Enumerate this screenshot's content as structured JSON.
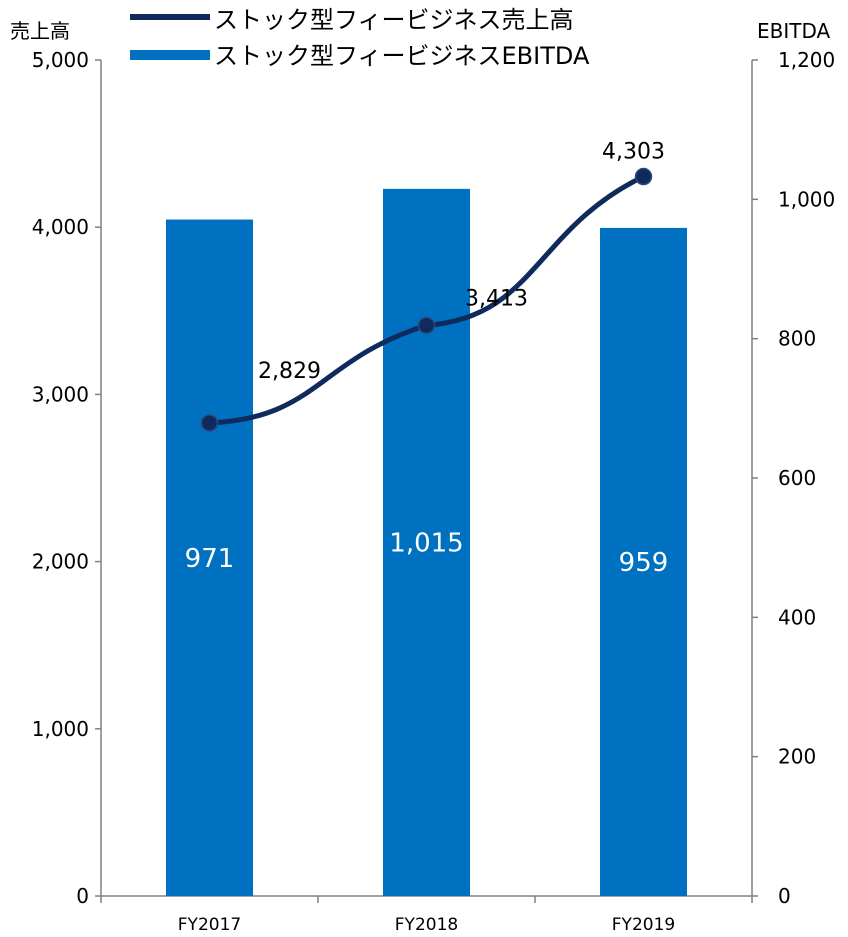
{
  "chart_data": {
    "type": "bar+line",
    "categories": [
      "FY2017",
      "FY2018",
      "FY2019"
    ],
    "left_axis": {
      "title": "売上高",
      "ylim": [
        0,
        5000
      ],
      "ticks": [
        0,
        1000,
        2000,
        3000,
        4000,
        5000
      ],
      "tick_labels": [
        "0",
        "1,000",
        "2,000",
        "3,000",
        "4,000",
        "5,000"
      ]
    },
    "right_axis": {
      "title": "EBITDA",
      "ylim": [
        0,
        1200
      ],
      "ticks": [
        0,
        200,
        400,
        600,
        800,
        1000,
        1200
      ],
      "tick_labels": [
        "0",
        "200",
        "400",
        "600",
        "800",
        "1,000",
        "1,200"
      ]
    },
    "series": [
      {
        "name": "ストック型フィービジネス売上高",
        "type": "line",
        "axis": "left",
        "values": [
          2829,
          3413,
          4303
        ],
        "labels": [
          "2,829",
          "3,413",
          "4,303"
        ],
        "color": "#0f2a5c"
      },
      {
        "name": "ストック型フィービジネスEBITDA",
        "type": "bar",
        "axis": "right",
        "values": [
          971,
          1015,
          959
        ],
        "labels": [
          "971",
          "1,015",
          "959"
        ],
        "color": "#0070c0"
      }
    ],
    "legend_position": "top",
    "grid": false
  }
}
